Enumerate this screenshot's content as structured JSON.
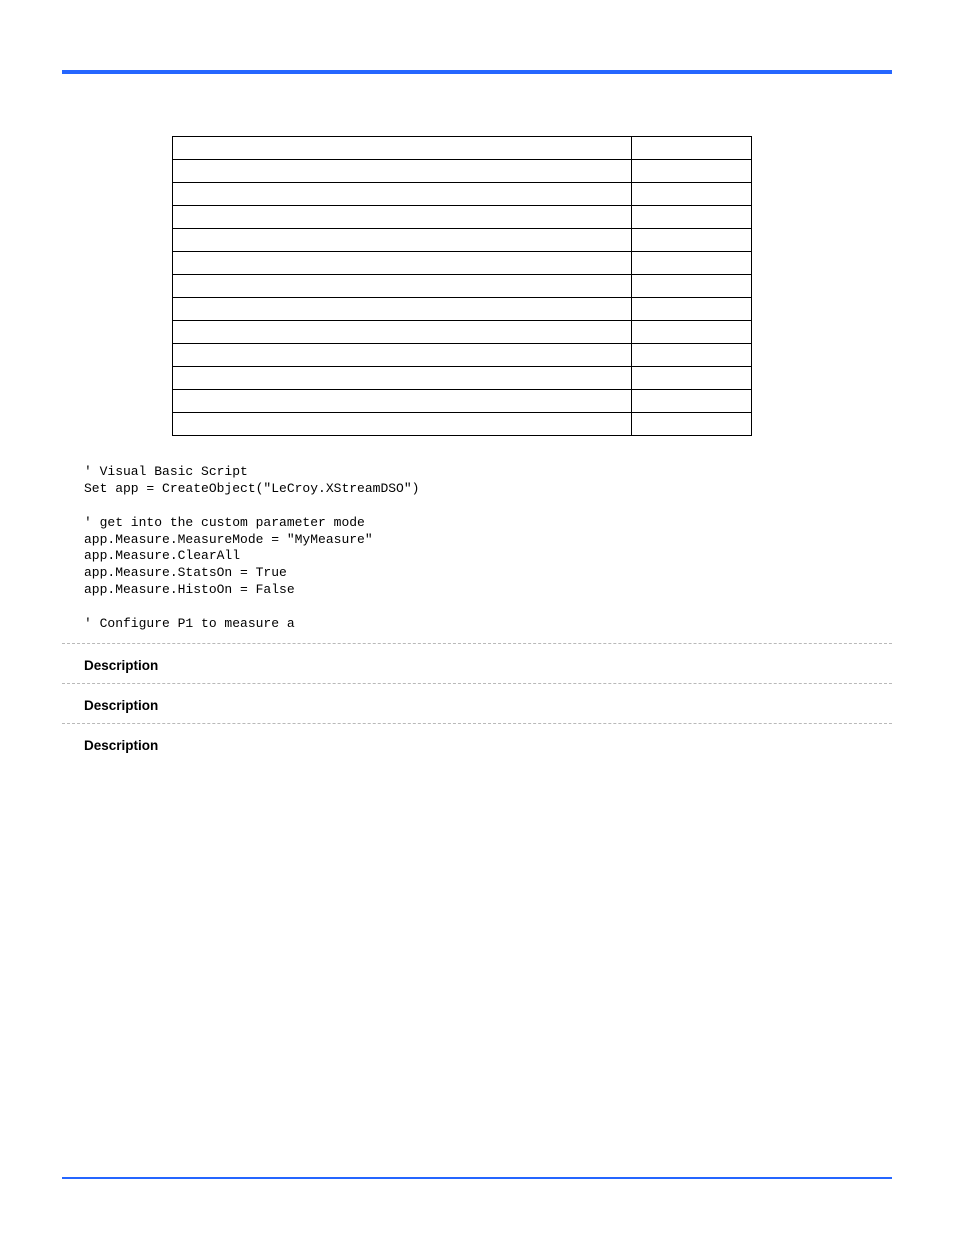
{
  "top_rule_color": "#2566ff",
  "table": {
    "rows": [
      {
        "c1": "",
        "c2": ""
      },
      {
        "c1": "",
        "c2": ""
      },
      {
        "c1": "",
        "c2": ""
      },
      {
        "c1": "",
        "c2": ""
      },
      {
        "c1": "",
        "c2": ""
      },
      {
        "c1": "",
        "c2": ""
      },
      {
        "c1": "",
        "c2": ""
      },
      {
        "c1": "",
        "c2": ""
      },
      {
        "c1": "",
        "c2": ""
      },
      {
        "c1": "",
        "c2": ""
      },
      {
        "c1": "",
        "c2": ""
      },
      {
        "c1": "",
        "c2": ""
      },
      {
        "c1": "",
        "c2": ""
      }
    ]
  },
  "example_label": "",
  "code_block": "' Visual Basic Script\nSet app = CreateObject(\"LeCroy.XStreamDSO\")\n\n' get into the custom parameter mode\napp.Measure.MeasureMode = \"MyMeasure\"\napp.Measure.ClearAll\napp.Measure.StatsOn = True\napp.Measure.HistoOn = False\n\n' Configure P1 to measure a",
  "sections": [
    {
      "title": "",
      "meta": "",
      "desc_hdr": "Description",
      "desc_body": ""
    },
    {
      "title": "",
      "meta": "",
      "desc_hdr": "Description",
      "desc_body": ""
    },
    {
      "title": "",
      "meta": "",
      "desc_hdr": "Description",
      "desc_body": ""
    }
  ],
  "footer": {
    "left": "",
    "right": ""
  }
}
